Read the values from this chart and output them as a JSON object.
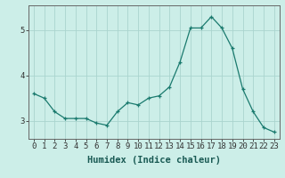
{
  "x": [
    0,
    1,
    2,
    3,
    4,
    5,
    6,
    7,
    8,
    9,
    10,
    11,
    12,
    13,
    14,
    15,
    16,
    17,
    18,
    19,
    20,
    21,
    22,
    23
  ],
  "y": [
    3.6,
    3.5,
    3.2,
    3.05,
    3.05,
    3.05,
    2.95,
    2.9,
    3.2,
    3.4,
    3.35,
    3.5,
    3.55,
    3.75,
    4.3,
    5.05,
    5.05,
    5.3,
    5.05,
    4.6,
    3.7,
    3.2,
    2.85,
    2.75
  ],
  "xlabel": "Humidex (Indice chaleur)",
  "line_color": "#1a7a6e",
  "marker_color": "#1a7a6e",
  "bg_color": "#cceee8",
  "grid_color": "#aad4ce",
  "axis_color": "#666666",
  "ylim": [
    2.6,
    5.55
  ],
  "yticks": [
    3,
    4,
    5
  ],
  "xticks": [
    0,
    1,
    2,
    3,
    4,
    5,
    6,
    7,
    8,
    9,
    10,
    11,
    12,
    13,
    14,
    15,
    16,
    17,
    18,
    19,
    20,
    21,
    22,
    23
  ],
  "tick_fontsize": 6.5,
  "label_fontsize": 7.5
}
